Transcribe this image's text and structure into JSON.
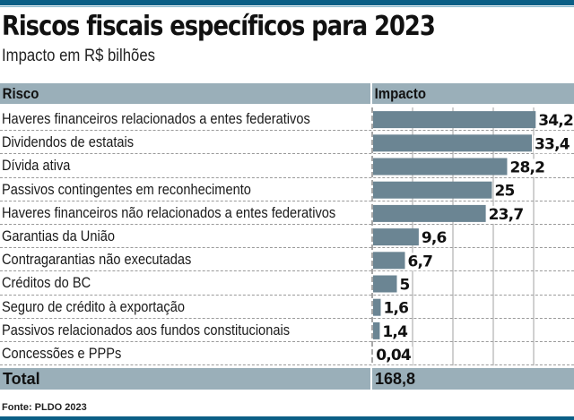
{
  "header": {
    "title": "Riscos fiscais específicos para 2023",
    "subtitle": "Impacto em R$ bilhões"
  },
  "table": {
    "col_risco": "Risco",
    "col_impacto": "Impacto",
    "total_label": "Total",
    "total_value": "168,8"
  },
  "source": "Fonte: PLDO 2023",
  "colors": {
    "bar": "#6b8593",
    "header_bg": "#9aafb9",
    "band": "#0b5f86"
  },
  "chart_data": {
    "type": "bar",
    "orientation": "horizontal",
    "title": "Riscos fiscais específicos para 2023",
    "subtitle": "Impacto em R$ bilhões",
    "xlabel": "Impacto",
    "ylabel": "Risco",
    "categories": [
      "Haveres financeiros relacionados a entes federativos",
      "Dividendos de estatais",
      "Dívida ativa",
      "Passivos contingentes em reconhecimento",
      "Haveres financeiros não relacionados a entes federativos",
      "Garantias da União",
      "Contragarantias não executadas",
      "Créditos do BC",
      "Seguro de crédito à exportação",
      "Passivos relacionados aos fundos constitucionais",
      "Concessões e PPPs"
    ],
    "values": [
      34.2,
      33.4,
      28.2,
      25,
      23.7,
      9.6,
      6.7,
      5,
      1.6,
      1.4,
      0.04
    ],
    "value_labels": [
      "34,2",
      "33,4",
      "28,2",
      "25",
      "23,7",
      "9,6",
      "6,7",
      "5",
      "1,6",
      "1,4",
      "0,04"
    ],
    "total": 168.8,
    "xlim": [
      0,
      42
    ],
    "grid": true,
    "legend": "none"
  }
}
